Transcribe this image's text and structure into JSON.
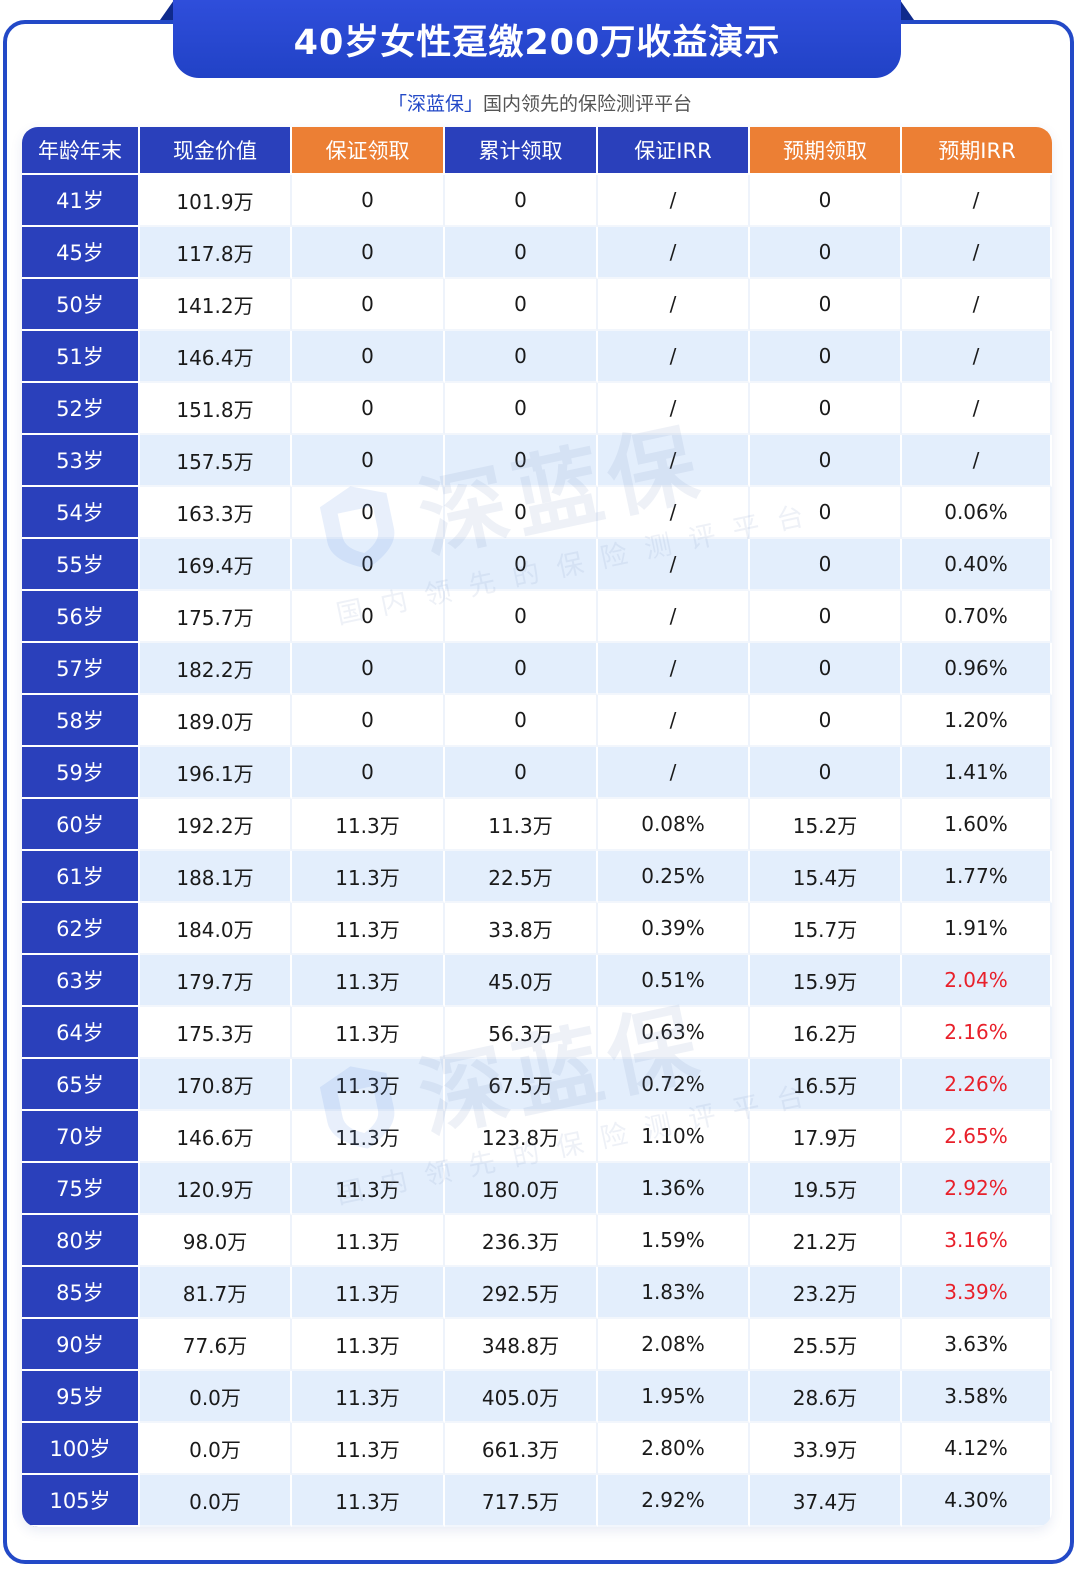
{
  "header": {
    "title": "40岁女性趸缴200万收益演示",
    "subtitle_brand": "「深蓝保」",
    "subtitle_rest": "国内领先的保险测评平台"
  },
  "watermark": {
    "brand": "深蓝保",
    "tagline": "国内领先的保险测评平台"
  },
  "colors": {
    "frame_blue": "#2349C7",
    "header_blue": "#2A40BB",
    "header_orange": "#EC7F34",
    "row_alt": "#E3EEFC",
    "highlight_red": "#E8202A"
  },
  "table": {
    "columns": [
      {
        "label": "年龄年末",
        "color": "blue"
      },
      {
        "label": "现金价值",
        "color": "blue"
      },
      {
        "label": "保证领取",
        "color": "orange"
      },
      {
        "label": "累计领取",
        "color": "blue"
      },
      {
        "label": "保证IRR",
        "color": "blue"
      },
      {
        "label": "预期领取",
        "color": "orange"
      },
      {
        "label": "预期IRR",
        "color": "orange"
      }
    ],
    "rows": [
      {
        "age": "41岁",
        "cash": "101.9万",
        "guar": "0",
        "cum": "0",
        "girr": "/",
        "exp": "0",
        "eirr": "/",
        "eirr_red": false
      },
      {
        "age": "45岁",
        "cash": "117.8万",
        "guar": "0",
        "cum": "0",
        "girr": "/",
        "exp": "0",
        "eirr": "/",
        "eirr_red": false
      },
      {
        "age": "50岁",
        "cash": "141.2万",
        "guar": "0",
        "cum": "0",
        "girr": "/",
        "exp": "0",
        "eirr": "/",
        "eirr_red": false
      },
      {
        "age": "51岁",
        "cash": "146.4万",
        "guar": "0",
        "cum": "0",
        "girr": "/",
        "exp": "0",
        "eirr": "/",
        "eirr_red": false
      },
      {
        "age": "52岁",
        "cash": "151.8万",
        "guar": "0",
        "cum": "0",
        "girr": "/",
        "exp": "0",
        "eirr": "/",
        "eirr_red": false
      },
      {
        "age": "53岁",
        "cash": "157.5万",
        "guar": "0",
        "cum": "0",
        "girr": "/",
        "exp": "0",
        "eirr": "/",
        "eirr_red": false
      },
      {
        "age": "54岁",
        "cash": "163.3万",
        "guar": "0",
        "cum": "0",
        "girr": "/",
        "exp": "0",
        "eirr": "0.06%",
        "eirr_red": false
      },
      {
        "age": "55岁",
        "cash": "169.4万",
        "guar": "0",
        "cum": "0",
        "girr": "/",
        "exp": "0",
        "eirr": "0.40%",
        "eirr_red": false
      },
      {
        "age": "56岁",
        "cash": "175.7万",
        "guar": "0",
        "cum": "0",
        "girr": "/",
        "exp": "0",
        "eirr": "0.70%",
        "eirr_red": false
      },
      {
        "age": "57岁",
        "cash": "182.2万",
        "guar": "0",
        "cum": "0",
        "girr": "/",
        "exp": "0",
        "eirr": "0.96%",
        "eirr_red": false
      },
      {
        "age": "58岁",
        "cash": "189.0万",
        "guar": "0",
        "cum": "0",
        "girr": "/",
        "exp": "0",
        "eirr": "1.20%",
        "eirr_red": false
      },
      {
        "age": "59岁",
        "cash": "196.1万",
        "guar": "0",
        "cum": "0",
        "girr": "/",
        "exp": "0",
        "eirr": "1.41%",
        "eirr_red": false
      },
      {
        "age": "60岁",
        "cash": "192.2万",
        "guar": "11.3万",
        "cum": "11.3万",
        "girr": "0.08%",
        "exp": "15.2万",
        "eirr": "1.60%",
        "eirr_red": false
      },
      {
        "age": "61岁",
        "cash": "188.1万",
        "guar": "11.3万",
        "cum": "22.5万",
        "girr": "0.25%",
        "exp": "15.4万",
        "eirr": "1.77%",
        "eirr_red": false
      },
      {
        "age": "62岁",
        "cash": "184.0万",
        "guar": "11.3万",
        "cum": "33.8万",
        "girr": "0.39%",
        "exp": "15.7万",
        "eirr": "1.91%",
        "eirr_red": false
      },
      {
        "age": "63岁",
        "cash": "179.7万",
        "guar": "11.3万",
        "cum": "45.0万",
        "girr": "0.51%",
        "exp": "15.9万",
        "eirr": "2.04%",
        "eirr_red": true
      },
      {
        "age": "64岁",
        "cash": "175.3万",
        "guar": "11.3万",
        "cum": "56.3万",
        "girr": "0.63%",
        "exp": "16.2万",
        "eirr": "2.16%",
        "eirr_red": true
      },
      {
        "age": "65岁",
        "cash": "170.8万",
        "guar": "11.3万",
        "cum": "67.5万",
        "girr": "0.72%",
        "exp": "16.5万",
        "eirr": "2.26%",
        "eirr_red": true
      },
      {
        "age": "70岁",
        "cash": "146.6万",
        "guar": "11.3万",
        "cum": "123.8万",
        "girr": "1.10%",
        "exp": "17.9万",
        "eirr": "2.65%",
        "eirr_red": true
      },
      {
        "age": "75岁",
        "cash": "120.9万",
        "guar": "11.3万",
        "cum": "180.0万",
        "girr": "1.36%",
        "exp": "19.5万",
        "eirr": "2.92%",
        "eirr_red": true
      },
      {
        "age": "80岁",
        "cash": "98.0万",
        "guar": "11.3万",
        "cum": "236.3万",
        "girr": "1.59%",
        "exp": "21.2万",
        "eirr": "3.16%",
        "eirr_red": true
      },
      {
        "age": "85岁",
        "cash": "81.7万",
        "guar": "11.3万",
        "cum": "292.5万",
        "girr": "1.83%",
        "exp": "23.2万",
        "eirr": "3.39%",
        "eirr_red": true
      },
      {
        "age": "90岁",
        "cash": "77.6万",
        "guar": "11.3万",
        "cum": "348.8万",
        "girr": "2.08%",
        "exp": "25.5万",
        "eirr": "3.63%",
        "eirr_red": false
      },
      {
        "age": "95岁",
        "cash": "0.0万",
        "guar": "11.3万",
        "cum": "405.0万",
        "girr": "1.95%",
        "exp": "28.6万",
        "eirr": "3.58%",
        "eirr_red": false
      },
      {
        "age": "100岁",
        "cash": "0.0万",
        "guar": "11.3万",
        "cum": "661.3万",
        "girr": "2.80%",
        "exp": "33.9万",
        "eirr": "4.12%",
        "eirr_red": false
      },
      {
        "age": "105岁",
        "cash": "0.0万",
        "guar": "11.3万",
        "cum": "717.5万",
        "girr": "2.92%",
        "exp": "37.4万",
        "eirr": "4.30%",
        "eirr_red": false
      }
    ]
  }
}
